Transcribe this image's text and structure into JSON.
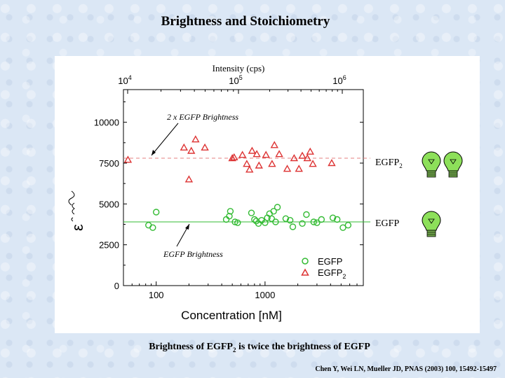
{
  "slide": {
    "title": "Brightness and Stoichiometry",
    "caption": {
      "part1": "Brightness of EGFP",
      "sub": "2",
      "part2": " is twice the brightness of EGFP"
    },
    "citation": "Chen Y, Wei LN, Mueller JD, PNAS (2003) 100, 15492-15497"
  },
  "side_labels": {
    "egfp2_main": "EGFP",
    "egfp2_sub": "2",
    "egfp": "EGFP"
  },
  "chart_data": {
    "type": "scatter",
    "x_scale": "log",
    "xlim": [
      50,
      8000
    ],
    "ylim": [
      0,
      12000
    ],
    "xlabel": "Concentration [nM]",
    "ylabel_symbol": "ε",
    "x_ticks": [
      100,
      1000
    ],
    "y_ticks": [
      0,
      2500,
      5000,
      7500,
      10000
    ],
    "top_axis": {
      "label": "Intensity (cps)",
      "ticks": [
        {
          "base": "10",
          "exp": "4"
        },
        {
          "base": "10",
          "exp": "5"
        },
        {
          "base": "10",
          "exp": "6"
        }
      ]
    },
    "reference_lines": [
      {
        "name": "2 x EGFP Brightness",
        "y": 7800,
        "color": "#e58080",
        "dashed": true
      },
      {
        "name": "EGFP Brightness",
        "y": 3900,
        "color": "#33bb33",
        "dashed": false
      }
    ],
    "annotations": [
      {
        "text": "2 x EGFP Brightness"
      },
      {
        "text": "EGFP Brightness"
      }
    ],
    "series": [
      {
        "name": "EGFP",
        "marker": "circle",
        "color": "#33bb33",
        "points": [
          {
            "x": 85,
            "y": 3700
          },
          {
            "x": 93,
            "y": 3550
          },
          {
            "x": 100,
            "y": 4500
          },
          {
            "x": 440,
            "y": 4050
          },
          {
            "x": 470,
            "y": 4250
          },
          {
            "x": 480,
            "y": 4550
          },
          {
            "x": 530,
            "y": 3900
          },
          {
            "x": 560,
            "y": 3850
          },
          {
            "x": 750,
            "y": 4450
          },
          {
            "x": 800,
            "y": 4050
          },
          {
            "x": 830,
            "y": 3950
          },
          {
            "x": 870,
            "y": 3800
          },
          {
            "x": 930,
            "y": 4000
          },
          {
            "x": 1000,
            "y": 3850
          },
          {
            "x": 1050,
            "y": 4150
          },
          {
            "x": 1100,
            "y": 4400
          },
          {
            "x": 1150,
            "y": 4100
          },
          {
            "x": 1200,
            "y": 4550
          },
          {
            "x": 1250,
            "y": 3900
          },
          {
            "x": 1300,
            "y": 4800
          },
          {
            "x": 1550,
            "y": 4100
          },
          {
            "x": 1700,
            "y": 4000
          },
          {
            "x": 1800,
            "y": 3600
          },
          {
            "x": 2200,
            "y": 3800
          },
          {
            "x": 2400,
            "y": 4350
          },
          {
            "x": 2800,
            "y": 3900
          },
          {
            "x": 3000,
            "y": 3850
          },
          {
            "x": 3300,
            "y": 4050
          },
          {
            "x": 4200,
            "y": 4150
          },
          {
            "x": 4600,
            "y": 4050
          },
          {
            "x": 5200,
            "y": 3550
          },
          {
            "x": 5800,
            "y": 3700
          }
        ]
      },
      {
        "name": "EGFP2",
        "legend_main": "EGFP",
        "legend_sub": "2",
        "marker": "triangle",
        "color": "#dd3333",
        "points": [
          {
            "x": 55,
            "y": 7700
          },
          {
            "x": 180,
            "y": 8450
          },
          {
            "x": 200,
            "y": 6500
          },
          {
            "x": 210,
            "y": 8250
          },
          {
            "x": 230,
            "y": 8950
          },
          {
            "x": 280,
            "y": 8450
          },
          {
            "x": 500,
            "y": 7800
          },
          {
            "x": 520,
            "y": 7850
          },
          {
            "x": 620,
            "y": 8000
          },
          {
            "x": 680,
            "y": 7450
          },
          {
            "x": 720,
            "y": 7100
          },
          {
            "x": 760,
            "y": 8250
          },
          {
            "x": 840,
            "y": 8050
          },
          {
            "x": 880,
            "y": 7350
          },
          {
            "x": 1020,
            "y": 8000
          },
          {
            "x": 1160,
            "y": 7450
          },
          {
            "x": 1220,
            "y": 8600
          },
          {
            "x": 1350,
            "y": 8050
          },
          {
            "x": 1600,
            "y": 7150
          },
          {
            "x": 1850,
            "y": 7800
          },
          {
            "x": 2050,
            "y": 7150
          },
          {
            "x": 2200,
            "y": 7950
          },
          {
            "x": 2450,
            "y": 7800
          },
          {
            "x": 2600,
            "y": 8200
          },
          {
            "x": 2750,
            "y": 7450
          },
          {
            "x": 4100,
            "y": 7500
          }
        ]
      }
    ]
  }
}
